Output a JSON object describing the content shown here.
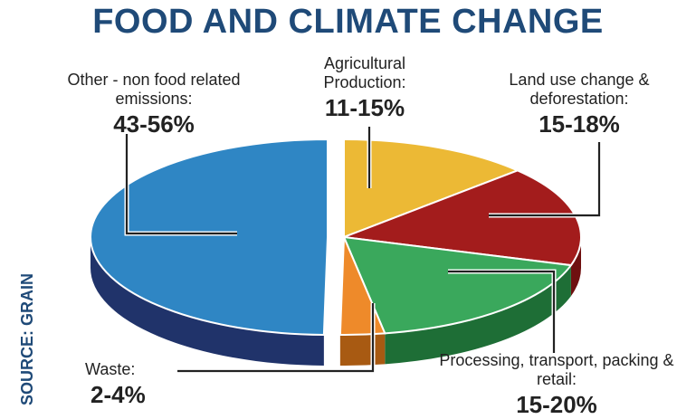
{
  "chart_data": {
    "type": "pie",
    "title": "FOOD AND CLIMATE CHANGE",
    "source": "SOURCE: GRAIN",
    "slices": [
      {
        "name": "Other - non food related emissions:",
        "value_label": "43-56%",
        "value": 49.5,
        "color": "#2f86c4",
        "side_color": "#20336a"
      },
      {
        "name": "Agricultural Production:",
        "value_label": "11-15%",
        "value": 13,
        "color": "#ecb935",
        "side_color": "#b98a1c"
      },
      {
        "name": "Land use change & deforestation:",
        "value_label": "15-18%",
        "value": 16.5,
        "color": "#a31c1c",
        "side_color": "#6f1010"
      },
      {
        "name": "Processing, transport, packing & retail:",
        "value_label": "15-20%",
        "value": 17.5,
        "color": "#3aa85c",
        "side_color": "#1e6e36"
      },
      {
        "name": "Waste:",
        "value_label": "2-4%",
        "value": 3,
        "color": "#ee8a2a",
        "side_color": "#a85a12"
      }
    ]
  }
}
